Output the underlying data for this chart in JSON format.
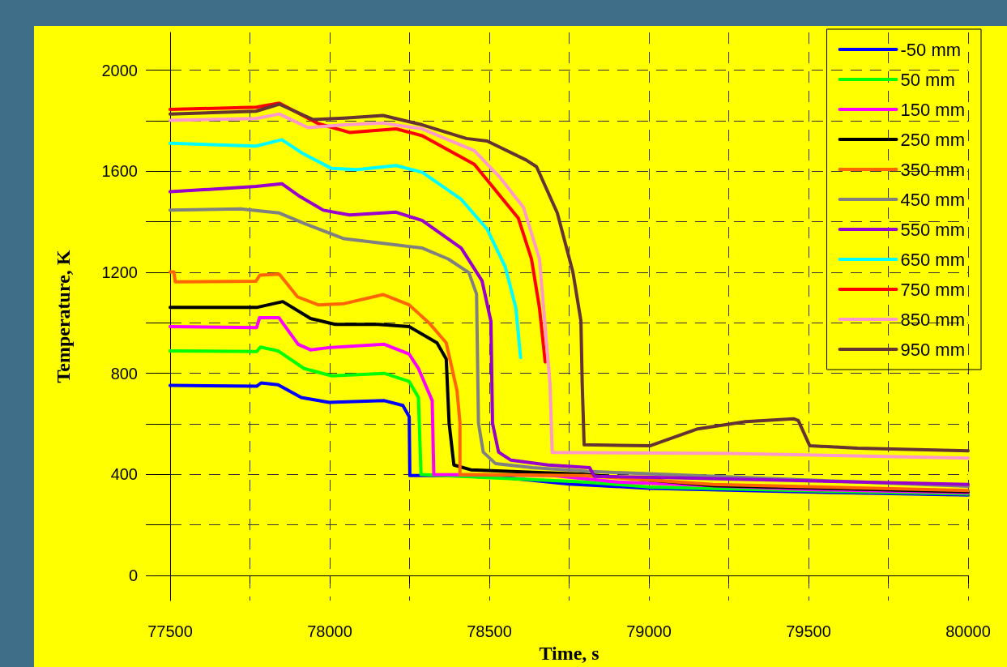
{
  "chart_data": {
    "type": "line",
    "xlabel": "Time, s",
    "ylabel": "Temperature, K",
    "xlim": [
      77500,
      80000
    ],
    "xticks": [
      77500,
      {
        "value": 77750,
        "label": null
      },
      78000,
      {
        "value": 78250,
        "label": null
      },
      78500,
      {
        "value": 78750,
        "label": null
      },
      79000,
      {
        "value": 79250,
        "label": null
      },
      79500,
      {
        "value": 79750,
        "label": null
      },
      80000
    ],
    "ylim": [
      -100,
      2150
    ],
    "yticks": [
      0,
      {
        "value": 200,
        "label": null
      },
      400,
      {
        "value": 600,
        "label": null
      },
      800,
      {
        "value": 1000,
        "label": null
      },
      1200,
      {
        "value": 1400,
        "label": null
      },
      1600,
      {
        "value": 1800,
        "label": null
      },
      2000
    ],
    "grid": true,
    "legend": "top right",
    "marker": "none",
    "line_style": "solid",
    "series": [
      {
        "name": "-50 mm",
        "color": "#0000ff",
        "x": [
          77500,
          77771,
          77785,
          77838,
          77911,
          77998,
          78171,
          78229,
          78249,
          78251,
          78400,
          78560,
          78750,
          79000,
          79500,
          80000
        ],
        "values": [
          752,
          749,
          762,
          755,
          704,
          685,
          692,
          673,
          628,
          395,
          395,
          386,
          362,
          345,
          330,
          318
        ]
      },
      {
        "name": "50 mm",
        "color": "#00ff00",
        "x": [
          77500,
          77771,
          77783,
          77838,
          77920,
          78007,
          78171,
          78249,
          78278,
          78286,
          78800,
          79000,
          79500,
          80000
        ],
        "values": [
          889,
          886,
          904,
          889,
          819,
          790,
          800,
          768,
          704,
          399,
          370,
          350,
          335,
          322
        ]
      },
      {
        "name": "150 mm",
        "color": "#ff00ff",
        "x": [
          77500,
          77771,
          77780,
          77841,
          77901,
          77940,
          77998,
          78171,
          78249,
          78278,
          78321,
          78326,
          78700,
          78900,
          79500,
          80000
        ],
        "values": [
          985,
          981,
          1020,
          1020,
          915,
          893,
          902,
          915,
          876,
          819,
          692,
          399,
          395,
          370,
          340,
          327
        ]
      },
      {
        "name": "250 mm",
        "color": "#000000",
        "x": [
          77500,
          77771,
          77853,
          77940,
          78017,
          78152,
          78249,
          78336,
          78365,
          78374,
          78389,
          78442,
          78800,
          79200,
          80000
        ],
        "values": [
          1061,
          1061,
          1084,
          1017,
          994,
          994,
          985,
          921,
          857,
          603,
          437,
          418,
          400,
          355,
          331
        ]
      },
      {
        "name": "350 mm",
        "color": "#ff6600",
        "x": [
          77500,
          77512,
          77516,
          77769,
          77781,
          77842,
          77899,
          77964,
          78045,
          78167,
          78249,
          78314,
          78365,
          78399,
          78408,
          78408,
          78800,
          79200,
          80000
        ],
        "values": [
          1202,
          1202,
          1162,
          1165,
          1189,
          1193,
          1103,
          1071,
          1076,
          1112,
          1071,
          996,
          921,
          730,
          603,
          399,
          395,
          360,
          336
        ]
      },
      {
        "name": "450 mm",
        "color": "#808080",
        "x": [
          77500,
          77720,
          77842,
          77923,
          78045,
          78167,
          78290,
          78371,
          78436,
          78460,
          78466,
          78481,
          78519,
          78635,
          78822,
          80000
        ],
        "values": [
          1446,
          1451,
          1435,
          1392,
          1333,
          1315,
          1296,
          1253,
          1199,
          1114,
          603,
          488,
          443,
          427,
          411,
          353
        ]
      },
      {
        "name": "550 mm",
        "color": "#9900cc",
        "x": [
          77500,
          77769,
          77850,
          77907,
          77980,
          78062,
          78208,
          78290,
          78412,
          78477,
          78505,
          78510,
          78529,
          78568,
          78684,
          78814,
          78829,
          79053,
          80000
        ],
        "values": [
          1519,
          1540,
          1551,
          1500,
          1446,
          1427,
          1438,
          1405,
          1296,
          1167,
          1006,
          603,
          488,
          456,
          437,
          427,
          392,
          387,
          360
        ]
      },
      {
        "name": "650 mm",
        "color": "#00ffff",
        "x": [
          77500,
          77769,
          77850,
          77915,
          78005,
          78086,
          78208,
          78290,
          78412,
          78493,
          78550,
          78583,
          78598
        ],
        "values": [
          1711,
          1700,
          1725,
          1671,
          1612,
          1607,
          1623,
          1596,
          1489,
          1371,
          1221,
          1060,
          862
        ]
      },
      {
        "name": "750 mm",
        "color": "#ff0000",
        "x": [
          77500,
          77770,
          77842,
          77964,
          78062,
          78208,
          78290,
          78453,
          78591,
          78632,
          78657,
          78675
        ],
        "values": [
          1845,
          1854,
          1870,
          1789,
          1754,
          1768,
          1741,
          1628,
          1414,
          1253,
          1060,
          845
        ]
      },
      {
        "name": "850 mm",
        "color": "#ff99cc",
        "x": [
          77500,
          77769,
          77842,
          77932,
          78045,
          78167,
          78290,
          78453,
          78534,
          78607,
          78657,
          78690,
          78697,
          79253,
          80000
        ],
        "values": [
          1802,
          1809,
          1827,
          1773,
          1784,
          1791,
          1768,
          1682,
          1575,
          1457,
          1253,
          760,
          487,
          483,
          464
        ]
      },
      {
        "name": "950 mm",
        "color": "#663333",
        "x": [
          77500,
          77769,
          77842,
          77948,
          78045,
          78167,
          78290,
          78428,
          78493,
          78615,
          78648,
          78713,
          78762,
          78787,
          78791,
          78797,
          79003,
          79153,
          79303,
          79453,
          79468,
          79504,
          79654,
          80000
        ],
        "values": [
          1827,
          1838,
          1866,
          1805,
          1811,
          1821,
          1784,
          1730,
          1720,
          1645,
          1618,
          1435,
          1200,
          1007,
          760,
          517,
          513,
          580,
          609,
          620,
          613,
          513,
          504,
          493
        ]
      }
    ]
  }
}
